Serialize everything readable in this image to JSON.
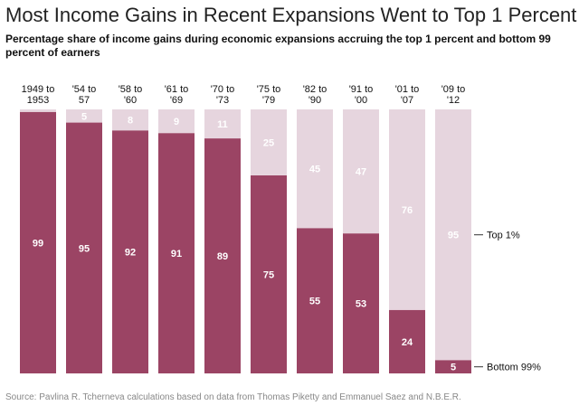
{
  "title": "Most Income Gains in Recent Expansions Went to Top 1 Percent",
  "subtitle": "Percentage share of income gains during economic expansions accruing the top 1 percent and bottom 99 percent of earners",
  "source": "Source: Pavlina R. Tcherneva calculations based on data from Thomas Piketty and Emmanuel Saez and N.B.E.R.",
  "colors": {
    "bottom99": "#9b4464",
    "top1": "#e6d5de",
    "bottom_label": "#ffffff",
    "top_label": "#ffffff"
  },
  "chart_data": {
    "type": "bar",
    "stacked": true,
    "normalized_percent": true,
    "categories": [
      [
        "1949 to",
        "1953"
      ],
      [
        "'54 to",
        "57"
      ],
      [
        "'58 to",
        "'60"
      ],
      [
        "'61 to",
        "'69"
      ],
      [
        "'70 to",
        "'73"
      ],
      [
        "'75 to",
        "'79"
      ],
      [
        "'82 to",
        "'90"
      ],
      [
        "'91 to",
        "'00"
      ],
      [
        "'01 to",
        "'07"
      ],
      [
        "'09 to",
        "'12"
      ]
    ],
    "series": [
      {
        "name": "Bottom 99%",
        "values": [
          99,
          95,
          92,
          91,
          89,
          75,
          55,
          53,
          24,
          5
        ]
      },
      {
        "name": "Top 1%",
        "values": [
          1,
          5,
          8,
          9,
          11,
          25,
          45,
          47,
          76,
          95
        ]
      }
    ],
    "value_labels": {
      "Bottom 99%": [
        "99",
        "95",
        "92",
        "91",
        "89",
        "75",
        "55",
        "53",
        "24",
        "5"
      ],
      "Top 1%": [
        "",
        "5",
        "8",
        "9",
        "11",
        "25",
        "45",
        "47",
        "76",
        "95"
      ]
    },
    "ylim": [
      0,
      100
    ],
    "grid": false,
    "legend": "right, beside last bar"
  }
}
